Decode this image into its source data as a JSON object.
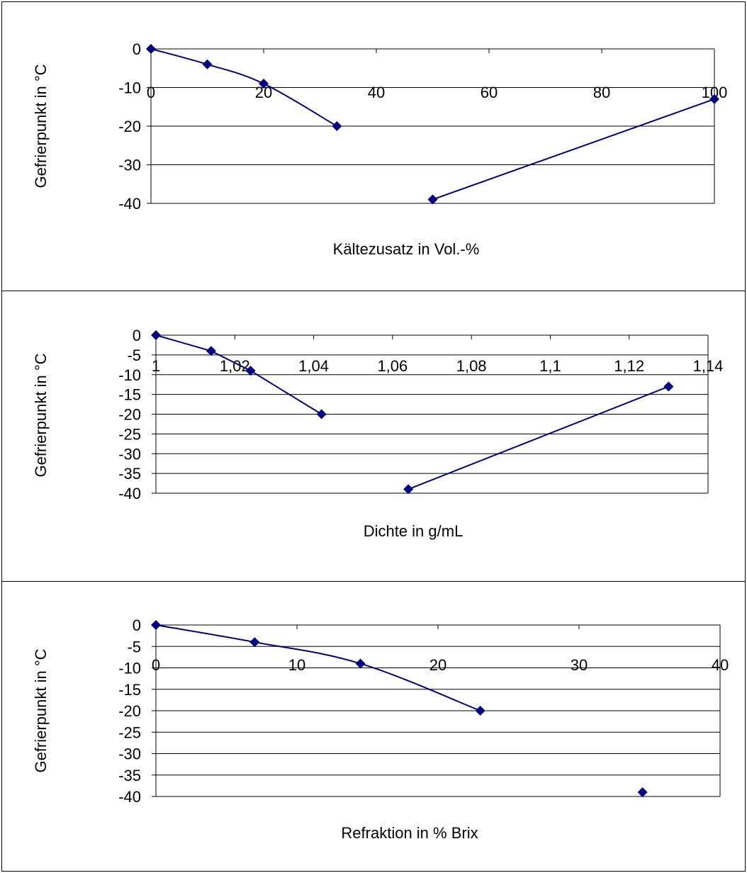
{
  "chart_data": [
    {
      "type": "line",
      "title": "",
      "xlabel": "Kältezusatz in Vol.-%",
      "ylabel": "Gefrierpunkt in °C",
      "xlim": [
        0,
        100
      ],
      "ylim": [
        -40,
        0
      ],
      "x_ticks": [
        "0",
        "20",
        "40",
        "60",
        "80",
        "100"
      ],
      "y_ticks": [
        "0",
        "-10",
        "-20",
        "-30",
        "-40"
      ],
      "grid": "horizontal",
      "series": [
        {
          "color": "#000080",
          "marker": "diamond",
          "smooth": true,
          "segments": [
            [
              [
                0,
                0
              ],
              [
                10,
                -4
              ],
              [
                20,
                -9
              ],
              [
                33,
                -20
              ]
            ],
            [
              [
                50,
                -39
              ],
              [
                100,
                -13
              ]
            ]
          ]
        }
      ]
    },
    {
      "type": "line",
      "title": "",
      "xlabel": "Dichte in g/mL",
      "ylabel": "Gefrierpunkt in °C",
      "xlim": [
        1,
        1.14
      ],
      "ylim": [
        -40,
        0
      ],
      "x_ticks": [
        "1",
        "1,02",
        "1,04",
        "1,06",
        "1,08",
        "1,1",
        "1,12",
        "1,14"
      ],
      "y_ticks": [
        "0",
        "-5",
        "-10",
        "-15",
        "-20",
        "-25",
        "-30",
        "-35",
        "-40"
      ],
      "grid": "horizontal",
      "series": [
        {
          "color": "#000080",
          "marker": "diamond",
          "smooth": false,
          "segments": [
            [
              [
                1,
                0
              ],
              [
                1.014,
                -4
              ],
              [
                1.024,
                -9
              ],
              [
                1.042,
                -20
              ]
            ],
            [
              [
                1.064,
                -39
              ],
              [
                1.13,
                -13
              ]
            ]
          ]
        }
      ]
    },
    {
      "type": "line",
      "title": "",
      "xlabel": "Refraktion in % Brix",
      "ylabel": "Gefrierpunkt in °C",
      "xlim": [
        0,
        40
      ],
      "ylim": [
        -40,
        0
      ],
      "x_ticks": [
        "0",
        "10",
        "20",
        "30",
        "40"
      ],
      "y_ticks": [
        "0",
        "-5",
        "-10",
        "-15",
        "-20",
        "-25",
        "-30",
        "-35",
        "-40"
      ],
      "grid": "horizontal",
      "series": [
        {
          "color": "#000080",
          "marker": "diamond",
          "smooth": true,
          "segments": [
            [
              [
                0,
                0
              ],
              [
                7,
                -4
              ],
              [
                14.5,
                -9
              ],
              [
                23,
                -20
              ]
            ],
            [
              [
                34.5,
                -39
              ]
            ]
          ]
        }
      ]
    }
  ]
}
